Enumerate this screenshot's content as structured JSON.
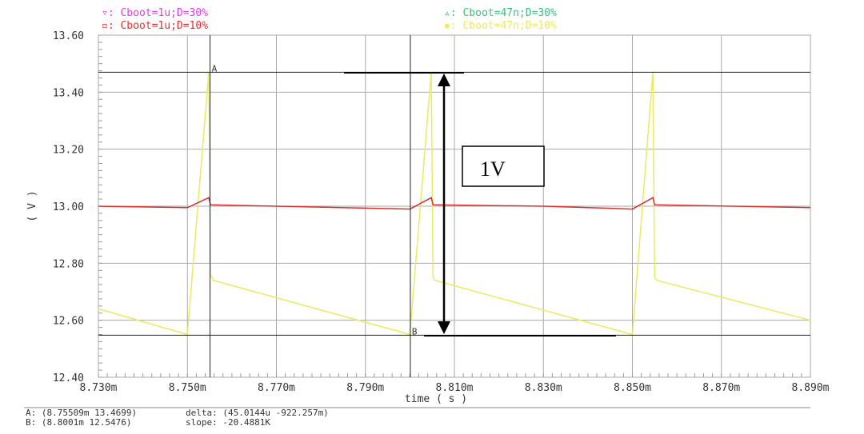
{
  "chart_data": {
    "type": "line",
    "xlabel": "time ( s )",
    "ylabel": "( V )",
    "xlim": [
      8.73,
      8.89
    ],
    "ylim": [
      12.4,
      13.6
    ],
    "x_unit": "ms",
    "grid": true,
    "x_ticks": [
      "8.730m",
      "8.750m",
      "8.770m",
      "8.790m",
      "8.810m",
      "8.830m",
      "8.850m",
      "8.870m",
      "8.890m"
    ],
    "y_ticks": [
      "13.60",
      "13.40",
      "13.20",
      "13.00",
      "12.80",
      "12.60",
      "12.40"
    ],
    "legend": [
      {
        "marker": "▿",
        "label": "Cboot=1u;D=30%",
        "color": "#e040e0"
      },
      {
        "marker": "▫",
        "label": "Cboot=1u;D=10%",
        "color": "#e03030"
      },
      {
        "marker": "▵",
        "label": "Cboot=47n;D=30%",
        "color": "#3cbf80"
      },
      {
        "marker": "▪",
        "label": "Cboot=47n;D=10%",
        "color": "#eaea60"
      }
    ],
    "series": [
      {
        "name": "Cboot=47n;D=10%",
        "color": "#eaea60",
        "points": [
          [
            8.73,
            12.64
          ],
          [
            8.75,
            12.55
          ],
          [
            8.7548,
            13.47
          ],
          [
            8.7552,
            12.76
          ],
          [
            8.7558,
            12.74
          ],
          [
            8.8,
            12.55
          ],
          [
            8.8048,
            13.47
          ],
          [
            8.8052,
            12.75
          ],
          [
            8.8056,
            12.74
          ],
          [
            8.85,
            12.55
          ],
          [
            8.8546,
            13.47
          ],
          [
            8.855,
            12.75
          ],
          [
            8.8554,
            12.74
          ],
          [
            8.89,
            12.6
          ]
        ]
      },
      {
        "name": "Cboot=1u;D=10%",
        "color": "#d83030",
        "points": [
          [
            8.73,
            13.0
          ],
          [
            8.75,
            12.995
          ],
          [
            8.7548,
            13.03
          ],
          [
            8.7552,
            13.005
          ],
          [
            8.77,
            13.0
          ],
          [
            8.8,
            12.99
          ],
          [
            8.8048,
            13.03
          ],
          [
            8.8052,
            13.005
          ],
          [
            8.83,
            13.0
          ],
          [
            8.85,
            12.99
          ],
          [
            8.8546,
            13.03
          ],
          [
            8.855,
            13.005
          ],
          [
            8.89,
            12.995
          ]
        ]
      }
    ],
    "cursors": {
      "A": {
        "label": "A",
        "x": 8.75509,
        "y": 13.4699
      },
      "B": {
        "label": "B",
        "x": 8.8001,
        "y": 12.5476
      }
    },
    "annotation": "1V"
  },
  "readout": {
    "a": "A: (8.75509m 13.4699)",
    "b": "B: (8.8001m 12.5476)",
    "delta": "delta: (45.0144u -922.257m)",
    "slope": "slope: -20.4881K"
  }
}
